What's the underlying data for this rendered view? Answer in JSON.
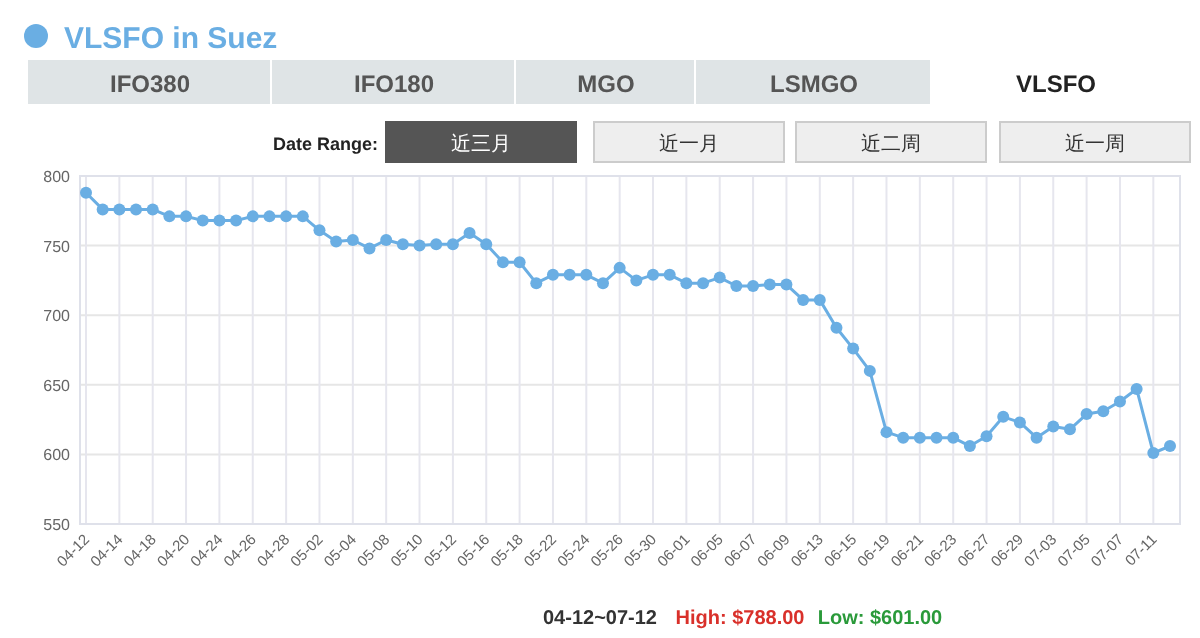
{
  "chart_data": {
    "type": "line",
    "title": "VLSFO in Suez",
    "categories": [
      "04-12",
      null,
      "04-14",
      null,
      "04-18",
      null,
      "04-20",
      null,
      "04-24",
      null,
      "04-26",
      null,
      "04-28",
      null,
      "05-02",
      null,
      "05-04",
      null,
      "05-08",
      null,
      "05-10",
      null,
      "05-12",
      null,
      "05-16",
      null,
      "05-18",
      null,
      "05-22",
      null,
      "05-24",
      null,
      "05-26",
      null,
      "05-30",
      null,
      "06-01",
      null,
      "06-05",
      null,
      "06-07",
      null,
      "06-09",
      null,
      "06-13",
      null,
      "06-15",
      null,
      "06-19",
      null,
      "06-21",
      null,
      "06-23",
      null,
      "06-27",
      null,
      "06-29",
      null,
      "07-03",
      null,
      "07-05",
      null,
      "07-07",
      null,
      "07-11",
      null
    ],
    "series": [
      {
        "color": "#6aaee3",
        "values": [
          788,
          776,
          776,
          776,
          776,
          771,
          771,
          768,
          768,
          768,
          771,
          771,
          771,
          771,
          761,
          753,
          754,
          748,
          754,
          751,
          750,
          751,
          751,
          759,
          751,
          738,
          738,
          723,
          729,
          729,
          729,
          723,
          734,
          725,
          729,
          729,
          723,
          723,
          727,
          721,
          721,
          722,
          722,
          711,
          711,
          691,
          676,
          660,
          616,
          612,
          612,
          612,
          612,
          606,
          613,
          627,
          623,
          612,
          620,
          618,
          629,
          631,
          638,
          647,
          601,
          606
        ]
      }
    ],
    "ylim": [
      550,
      800
    ],
    "yticks": [
      550,
      600,
      650,
      700,
      750,
      800
    ],
    "grid": true,
    "marker": "circle",
    "line_style": "solid",
    "annotations": [
      "IFO380",
      "IFO180",
      "MGO",
      "LSMGO",
      "VLSFO",
      "Date Range:",
      "近三月",
      "近一月",
      "近二周",
      "近一周",
      "04-12~07-12",
      "High: $788.00",
      "Low: $601.00"
    ]
  }
}
